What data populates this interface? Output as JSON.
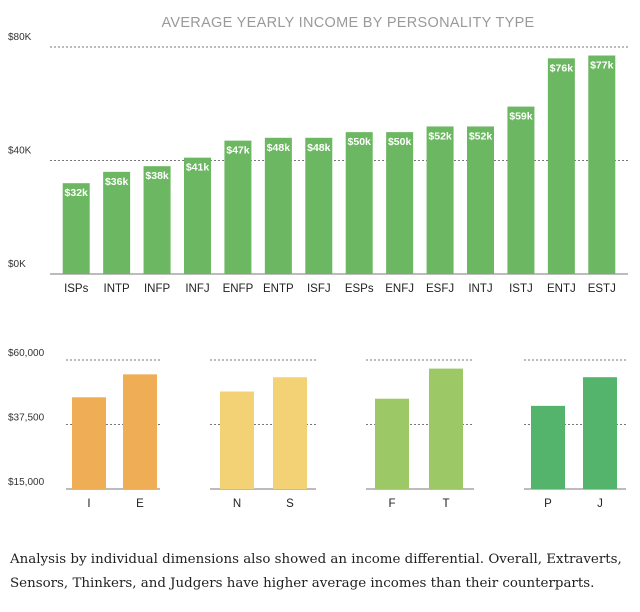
{
  "chart_data": [
    {
      "type": "bar",
      "title": "AVERAGE YEARLY INCOME BY PERSONALITY TYPE",
      "categories": [
        "ISPs",
        "INTP",
        "INFP",
        "INFJ",
        "ENFP",
        "ENTP",
        "ISFJ",
        "ESPs",
        "ENFJ",
        "ESFJ",
        "INTJ",
        "ISTJ",
        "ENTJ",
        "ESTJ"
      ],
      "values": [
        32,
        36,
        38,
        41,
        47,
        48,
        48,
        50,
        50,
        52,
        52,
        59,
        76,
        77
      ],
      "value_labels": [
        "$32k",
        "$36k",
        "$38k",
        "$41k",
        "$47k",
        "$48k",
        "$48k",
        "$50k",
        "$50k",
        "$52k",
        "$52k",
        "$59k",
        "$76k",
        "$77k"
      ],
      "yticks": [
        0,
        40,
        80
      ],
      "ytick_labels": [
        "$0K",
        "$40K",
        "$80K"
      ],
      "ylim": [
        0,
        80
      ],
      "color": "#6cb761",
      "grid": "dashed"
    },
    {
      "type": "bar",
      "yticks": [
        15000,
        37500,
        60000
      ],
      "ytick_labels": [
        "$15,000",
        "$37,500",
        "$60,000"
      ],
      "ylim": [
        15000,
        60000
      ],
      "grid": "dashed",
      "groups": [
        {
          "categories": [
            "I",
            "E"
          ],
          "values": [
            47000,
            55000
          ],
          "color": "#efae55"
        },
        {
          "categories": [
            "N",
            "S"
          ],
          "values": [
            49000,
            54000
          ],
          "color": "#f3d276"
        },
        {
          "categories": [
            "F",
            "T"
          ],
          "values": [
            46500,
            57000
          ],
          "color": "#9dc866"
        },
        {
          "categories": [
            "P",
            "J"
          ],
          "values": [
            44000,
            54000
          ],
          "color": "#54b46c"
        }
      ]
    }
  ],
  "caption": "Analysis by individual dimensions also showed an income differential. Overall, Extraverts, Sensors, Thinkers, and Judgers have higher average incomes than their counterparts."
}
